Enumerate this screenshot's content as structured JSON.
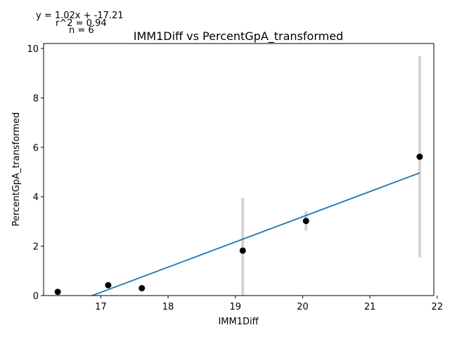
{
  "chart_data": {
    "type": "scatter",
    "title": "IMM1Diff vs PercentGpA_transformed",
    "xlabel": "IMM1Diff",
    "ylabel": "PercentGpA_transformed",
    "xlim": [
      16.15,
      21.95
    ],
    "ylim": [
      0,
      10.2
    ],
    "xticks": [
      "17",
      "18",
      "19",
      "20",
      "21",
      "22"
    ],
    "yticks": [
      "0",
      "2",
      "4",
      "6",
      "8",
      "10"
    ],
    "points": [
      {
        "x": 16.36,
        "y": 0.15,
        "err_low": 0.15,
        "err_high": 0.15
      },
      {
        "x": 17.11,
        "y": 0.42,
        "err_low": 0.42,
        "err_high": 0.42
      },
      {
        "x": 17.61,
        "y": 0.3,
        "err_low": 0.3,
        "err_high": 0.3
      },
      {
        "x": 19.11,
        "y": 1.82,
        "err_low": 0.0,
        "err_high": 3.95
      },
      {
        "x": 20.05,
        "y": 3.02,
        "err_low": 2.62,
        "err_high": 3.42
      },
      {
        "x": 21.74,
        "y": 5.62,
        "err_low": 1.55,
        "err_high": 9.68
      }
    ],
    "fit": {
      "slope": 1.02,
      "intercept": -17.21
    },
    "annotations": [
      "y = 1.02x + -17.21",
      "r^2 = 0.94",
      "n = 6"
    ],
    "colors": {
      "points": "#000000",
      "fit_line": "#1f77b4",
      "error_bars": "#d3d3d3"
    },
    "grid": false,
    "legend": "none"
  }
}
